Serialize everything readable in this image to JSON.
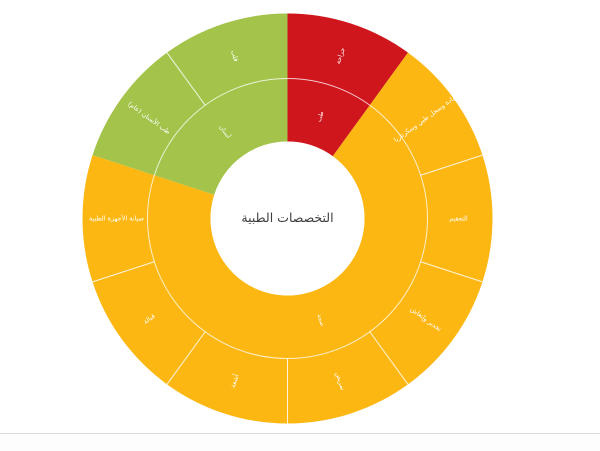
{
  "page": {
    "background": "#ffffff"
  },
  "chart_data": {
    "type": "pie",
    "variant": "sunburst",
    "title": "التخصصات الطبية",
    "legend_position": "none",
    "palette": {
      "red": "#d0161d",
      "yellow": "#fdb713",
      "green": "#a3c34a"
    },
    "title_color": "#3d3d3d",
    "label_color": "#ffffff",
    "rings": {
      "inner": [
        {
          "label": "طب",
          "color": "red",
          "start": 0,
          "end": 36,
          "value_pct": 10
        },
        {
          "label": "صحة",
          "color": "yellow",
          "start": 36,
          "end": 288,
          "value_pct": 70
        },
        {
          "label": "أسنان",
          "color": "green",
          "start": 288,
          "end": 360,
          "value_pct": 20
        }
      ],
      "outer": [
        {
          "label": "جراحة",
          "color": "red",
          "start": 0,
          "end": 36,
          "value_pct": 10
        },
        {
          "label": "عيادة وسجل طبي وسكرتاريا",
          "color": "yellow",
          "start": 36,
          "end": 72,
          "value_pct": 10
        },
        {
          "label": "التعقيم",
          "color": "yellow",
          "start": 72,
          "end": 108,
          "value_pct": 10
        },
        {
          "label": "تخدير وإنعاش",
          "color": "yellow",
          "start": 108,
          "end": 144,
          "value_pct": 10
        },
        {
          "label": "تمريض",
          "color": "yellow",
          "start": 144,
          "end": 180,
          "value_pct": 10
        },
        {
          "label": "أشعة",
          "color": "yellow",
          "start": 180,
          "end": 216,
          "value_pct": 10
        },
        {
          "label": "قبالة",
          "color": "yellow",
          "start": 216,
          "end": 252,
          "value_pct": 10
        },
        {
          "label": "صيانة الأجهزة الطبية",
          "color": "yellow",
          "start": 252,
          "end": 288,
          "value_pct": 10
        },
        {
          "label": "طب الأسنان (عام)",
          "color": "green",
          "start": 288,
          "end": 324,
          "value_pct": 10
        },
        {
          "label": "قلب",
          "color": "green",
          "start": 324,
          "end": 360,
          "value_pct": 10
        }
      ]
    }
  }
}
